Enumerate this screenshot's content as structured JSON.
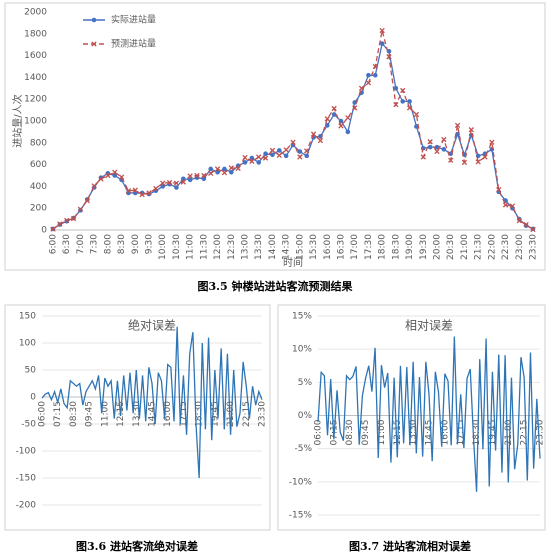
{
  "chart_data": [
    {
      "type": "line",
      "caption": "图3.5  钟楼站进站客流预测结果",
      "xlabel": "时间",
      "ylabel": "进站量/人次",
      "categories": [
        "6:00",
        null,
        "6:30",
        null,
        "7:00",
        null,
        "7:30",
        null,
        "8:00",
        null,
        "8:30",
        null,
        "9:00",
        null,
        "9:30",
        null,
        "10:00",
        null,
        "10:30",
        null,
        "11:00",
        null,
        "11:30",
        null,
        "12:00",
        null,
        "12:30",
        null,
        "13:00",
        null,
        "13:30",
        null,
        "14:00",
        null,
        "14:30",
        null,
        "15:00",
        null,
        "15:30",
        null,
        "16:00",
        null,
        "16:30",
        null,
        "17:00",
        null,
        "17:30",
        null,
        "18:00",
        null,
        "18:30",
        null,
        "19:00",
        null,
        "19:30",
        null,
        "20:00",
        null,
        "20:30",
        null,
        "21:00",
        null,
        "21:30",
        null,
        "22:00",
        null,
        "22:30",
        null,
        "23:00",
        null,
        "23:30"
      ],
      "series": [
        {
          "name": "实际进站量",
          "color": "#4472c4",
          "marker": "circle",
          "line_style": "solid",
          "values": [
            10,
            50,
            80,
            110,
            180,
            280,
            390,
            480,
            520,
            500,
            460,
            340,
            340,
            340,
            330,
            360,
            400,
            420,
            390,
            470,
            460,
            480,
            470,
            560,
            530,
            560,
            530,
            590,
            620,
            660,
            620,
            700,
            690,
            730,
            680,
            780,
            720,
            680,
            850,
            860,
            960,
            1060,
            1000,
            900,
            1170,
            1260,
            1420,
            1420,
            1710,
            1640,
            1300,
            1180,
            1180,
            950,
            750,
            760,
            760,
            740,
            700,
            880,
            690,
            870,
            680,
            700,
            740,
            350,
            270,
            200,
            100,
            40,
            10
          ]
        },
        {
          "name": "预测进站量",
          "color": "#c0504d",
          "marker": "x",
          "line_style": "dashed",
          "values": [
            8,
            55,
            88,
            105,
            190,
            270,
            405,
            468,
            500,
            530,
            485,
            360,
            365,
            325,
            340,
            380,
            430,
            435,
            430,
            440,
            495,
            500,
            500,
            520,
            560,
            525,
            570,
            565,
            665,
            630,
            670,
            660,
            730,
            685,
            735,
            805,
            670,
            725,
            880,
            820,
            1020,
            1115,
            955,
            1030,
            1120,
            1300,
            1350,
            1500,
            1830,
            1590,
            1150,
            1280,
            1120,
            1060,
            670,
            810,
            720,
            830,
            640,
            960,
            620,
            920,
            625,
            670,
            805,
            370,
            230,
            220,
            85,
            50,
            5
          ]
        }
      ],
      "ylim": [
        0,
        2000
      ],
      "yticks": [
        0,
        200,
        400,
        600,
        800,
        1000,
        1200,
        1400,
        1600,
        1800,
        2000
      ],
      "grid": false,
      "legend": "top-left"
    },
    {
      "type": "line",
      "title": "绝对误差",
      "caption": "图3.6  进站客流绝对误差",
      "categories": [
        "06:00",
        null,
        null,
        null,
        null,
        "07:15",
        null,
        null,
        null,
        null,
        "08:30",
        null,
        null,
        null,
        null,
        "09:45",
        null,
        null,
        null,
        null,
        "11:00",
        null,
        null,
        null,
        null,
        "12:15",
        null,
        null,
        null,
        null,
        "13:30",
        null,
        null,
        null,
        null,
        "14:45",
        null,
        null,
        null,
        null,
        "16:00",
        null,
        null,
        null,
        null,
        "17:15",
        null,
        null,
        null,
        null,
        "18:30",
        null,
        null,
        null,
        null,
        "19:45",
        null,
        null,
        null,
        null,
        "21:00",
        null,
        null,
        null,
        null,
        "22:15",
        null,
        null,
        null,
        null,
        "23:30"
      ],
      "color": "#2e75b6",
      "values": [
        -2,
        5,
        8,
        -5,
        10,
        -10,
        15,
        -12,
        -20,
        30,
        25,
        20,
        25,
        -15,
        10,
        20,
        30,
        15,
        40,
        -30,
        35,
        20,
        30,
        -40,
        30,
        -35,
        40,
        -25,
        45,
        -30,
        50,
        -40,
        40,
        -45,
        55,
        25,
        -50,
        45,
        30,
        -40,
        60,
        55,
        -45,
        130,
        -50,
        40,
        -70,
        80,
        120,
        -50,
        -150,
        100,
        -60,
        110,
        -80,
        50,
        -40,
        90,
        -60,
        80,
        -70,
        50,
        -55,
        -30,
        65,
        20,
        -40,
        20,
        -15,
        10,
        -5
      ],
      "ylim": [
        -200,
        150
      ],
      "yticks": [
        -200,
        -150,
        -100,
        -50,
        0,
        50,
        100,
        150
      ],
      "grid": true
    },
    {
      "type": "line",
      "title": "相对误差",
      "caption": "图3.7  进站客流相对误差",
      "categories": [
        "06:00",
        null,
        null,
        null,
        null,
        "07:15",
        null,
        null,
        null,
        null,
        "08:30",
        null,
        null,
        null,
        null,
        "09:45",
        null,
        null,
        null,
        null,
        "11:00",
        null,
        null,
        null,
        null,
        "12:15",
        null,
        null,
        null,
        null,
        "13:30",
        null,
        null,
        null,
        null,
        "14:45",
        null,
        null,
        null,
        null,
        "16:00",
        null,
        null,
        null,
        null,
        "17:15",
        null,
        null,
        null,
        null,
        "18:30",
        null,
        null,
        null,
        null,
        "19:45",
        null,
        null,
        null,
        null,
        "21:00",
        null,
        null,
        null,
        null,
        "22:15",
        null,
        null,
        null,
        null,
        "23:30"
      ],
      "color": "#2e75b6",
      "values": [
        -1,
        6.5,
        6,
        -3,
        5.5,
        -3.6,
        3.8,
        -2.5,
        -3.8,
        6,
        5.4,
        5.9,
        7.4,
        -4.4,
        3,
        5.6,
        7.5,
        3.6,
        10.2,
        -6.4,
        7.6,
        4.2,
        6.4,
        -7.1,
        5.7,
        -6.3,
        7.5,
        -4.2,
        7.3,
        -4.5,
        8.1,
        -5.7,
        5.8,
        -6.2,
        8.1,
        3.2,
        -6.9,
        6.6,
        3.5,
        -4.7,
        6.3,
        5.2,
        -4.5,
        11.9,
        -4.3,
        3.2,
        -4.9,
        5.6,
        7,
        -3,
        -11.5,
        8.5,
        -5.1,
        11.6,
        -10.7,
        6.6,
        -5.3,
        9.2,
        -8.6,
        9.1,
        -10.1,
        5.7,
        -8.1,
        -4.3,
        8.8,
        5.7,
        -9.8,
        9.5,
        -8,
        2.5,
        -6.5
      ],
      "ylim": [
        -15,
        15
      ],
      "yticks": [
        {
          "value": -15,
          "label": "-15%"
        },
        {
          "value": -10,
          "label": "-10%"
        },
        {
          "value": -5,
          "label": "-5%"
        },
        {
          "value": 0,
          "label": "0%"
        },
        {
          "value": 5,
          "label": "5%"
        },
        {
          "value": 10,
          "label": "10%"
        },
        {
          "value": 15,
          "label": "15%"
        }
      ],
      "grid": true
    }
  ]
}
